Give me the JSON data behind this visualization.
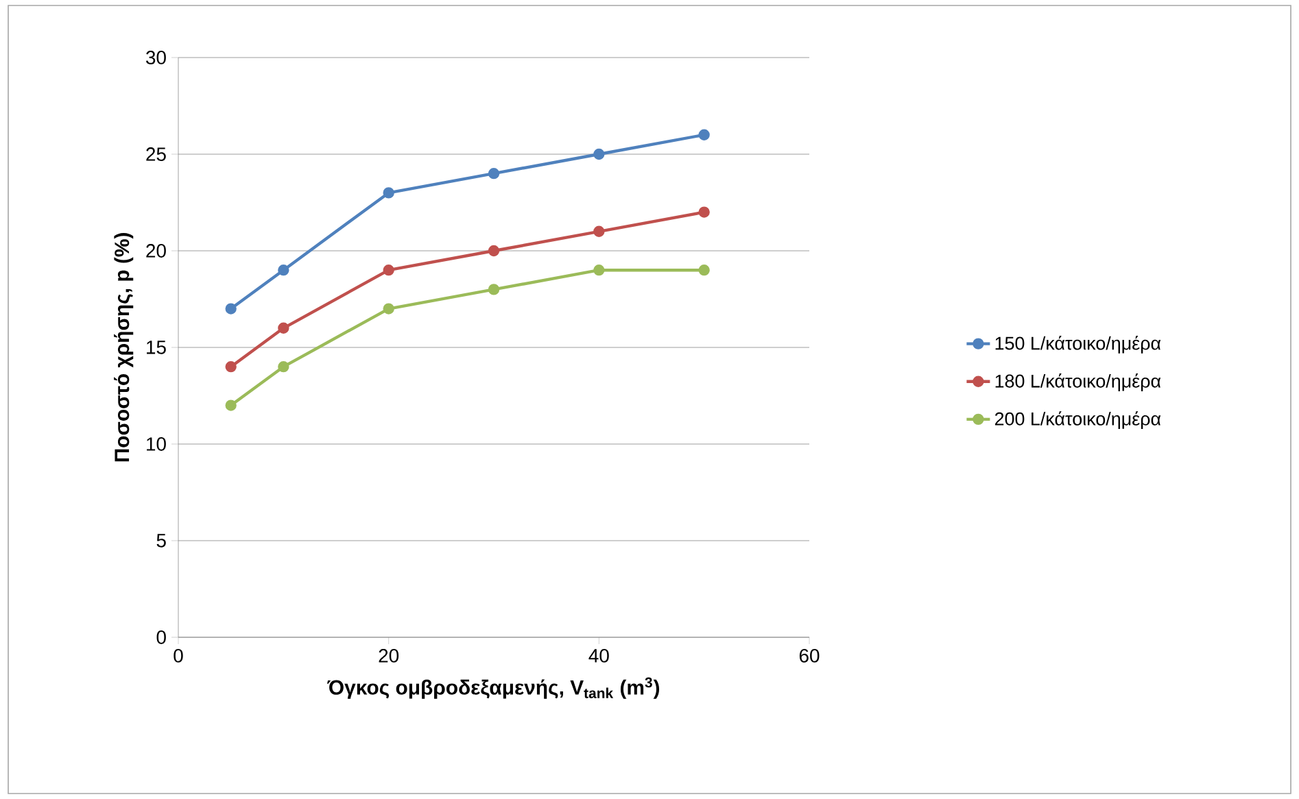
{
  "chart_data": {
    "type": "line",
    "xlabel": "Όγκος ομβροδεξαμενής, V$_{tank}$ (m$^{3}$)",
    "ylabel": "Ποσοστό χρήσης, p (%)",
    "x": [
      5,
      10,
      20,
      30,
      40,
      50
    ],
    "series": [
      {
        "name": "150 L/κάτοικο/ημέρα",
        "color": "#4f81bd",
        "values": [
          17,
          19,
          23,
          24,
          25,
          26
        ]
      },
      {
        "name": "180 L/κάτοικο/ημέρα",
        "color": "#c0504d",
        "values": [
          14,
          16,
          19,
          20,
          21,
          22
        ]
      },
      {
        "name": "200 L/κάτοικο/ημέρα",
        "color": "#9bbb59",
        "values": [
          12,
          14,
          17,
          18,
          19,
          19
        ]
      }
    ],
    "xlim": [
      0,
      60
    ],
    "xticks": [
      0,
      20,
      40,
      60
    ],
    "ylim": [
      0,
      30
    ],
    "yticks": [
      0,
      5,
      10,
      15,
      20,
      25,
      30
    ],
    "grid": "y",
    "legend": "right",
    "marker": "circle",
    "line_style": "solid"
  }
}
